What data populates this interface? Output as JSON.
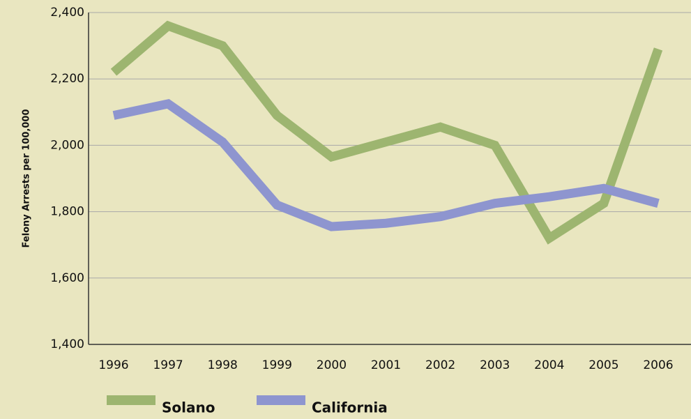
{
  "chart_data": {
    "type": "line",
    "y_label": "Felony Arrests per 100,000",
    "categories": [
      "1996",
      "1997",
      "1998",
      "1999",
      "2000",
      "2001",
      "2002",
      "2003",
      "2004",
      "2005",
      "2006"
    ],
    "series": [
      {
        "name": "Solano",
        "color": "#9db570",
        "values": [
          2220,
          2360,
          2300,
          2090,
          1965,
          2010,
          2055,
          2000,
          1720,
          1825,
          2290
        ]
      },
      {
        "name": "California",
        "color": "#8e95cf",
        "values": [
          2090,
          2125,
          2010,
          1820,
          1755,
          1765,
          1785,
          1825,
          1845,
          1870,
          1825
        ]
      }
    ],
    "ylim": [
      1400,
      2400
    ],
    "yticks": [
      {
        "value": 1400,
        "label": "1,400"
      },
      {
        "value": 1600,
        "label": "1,600"
      },
      {
        "value": 1800,
        "label": "1,800"
      },
      {
        "value": 2000,
        "label": "2,000"
      },
      {
        "value": 2200,
        "label": "2,200"
      },
      {
        "value": 2400,
        "label": "2,400"
      }
    ],
    "grid": true,
    "legend": "bottom"
  }
}
